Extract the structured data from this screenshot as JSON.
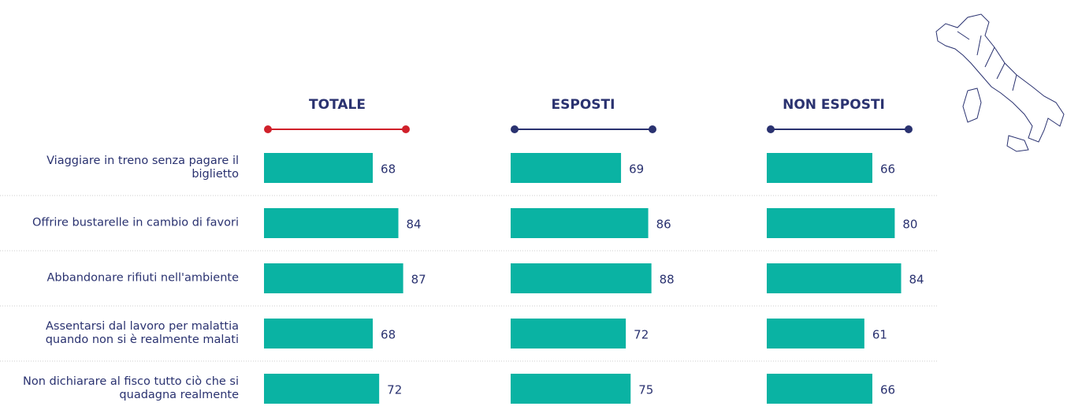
{
  "chart_data": {
    "type": "bar",
    "categories": [
      "Viaggiare in treno senza pagare il biglietto",
      "Offrire bustarelle in cambio di favori",
      "Abbandonare rifiuti nell'ambiente",
      "Assentarsi dal lavoro per malattia quando non si è realmente malati",
      "Non dichiarare al fisco tutto ciò che si quadagna realmente"
    ],
    "series": [
      {
        "name": "TOTALE",
        "color": "#0ab3a3",
        "header_color": "#d0202a",
        "values": [
          68,
          84,
          87,
          68,
          72
        ]
      },
      {
        "name": "ESPOSTI",
        "color": "#0ab3a3",
        "header_color": "#2a3270",
        "values": [
          69,
          86,
          88,
          72,
          75
        ]
      },
      {
        "name": "NON ESPOSTI",
        "color": "#0ab3a3",
        "header_color": "#2a3270",
        "values": [
          66,
          80,
          84,
          61,
          66
        ]
      }
    ]
  }
}
